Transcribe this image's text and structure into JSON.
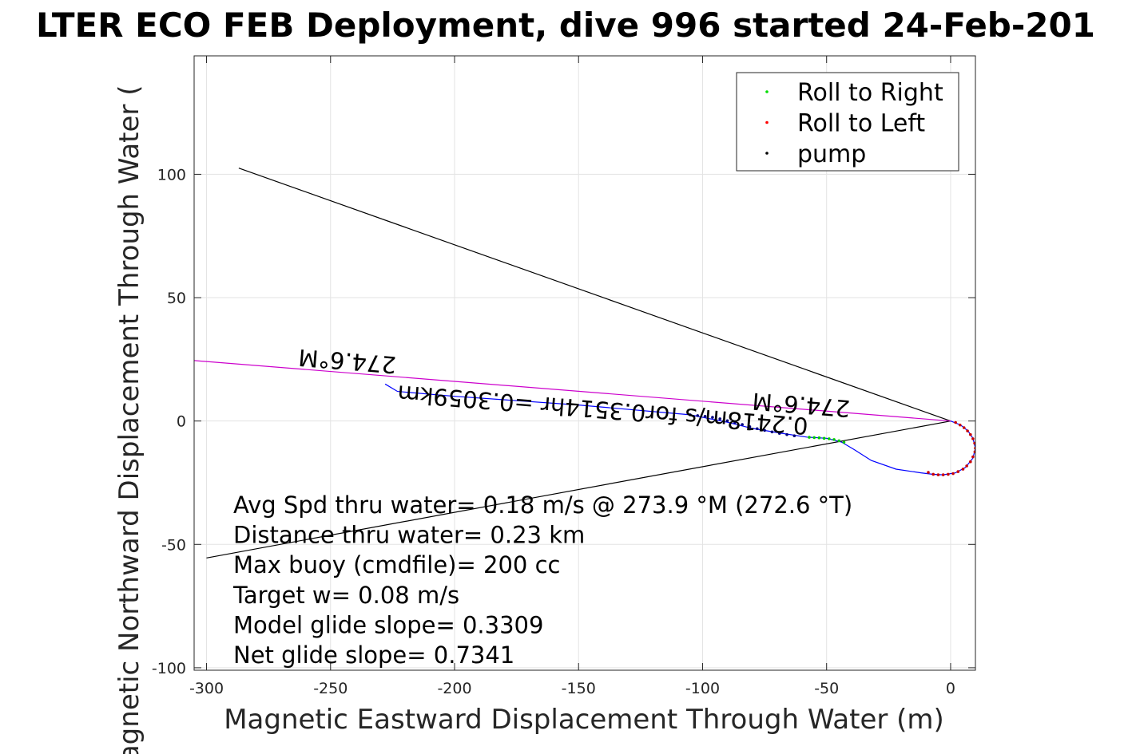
{
  "chart_data": {
    "type": "scatter",
    "title": "LTER ECO FEB Deployment, dive 996 started 24-Feb-201",
    "xlabel": "Magnetic Eastward Displacement Through Water (m)",
    "ylabel": "Magnetic Northward Displacement Through Water (",
    "xlim": [
      -305,
      10
    ],
    "ylim": [
      -101,
      148
    ],
    "xticks": [
      -300,
      -250,
      -200,
      -150,
      -100,
      -50,
      0
    ],
    "xtick_labels": [
      "-300",
      "-250",
      "-200",
      "-150",
      "-100",
      "-50",
      "0"
    ],
    "yticks": [
      -100,
      -50,
      0,
      50,
      100
    ],
    "ytick_labels": [
      "-100",
      "-50",
      "0",
      "50",
      "100"
    ],
    "grid": true,
    "legend_position": "top-right",
    "legend": [
      {
        "label": "Roll to Right",
        "color": "#00dd00"
      },
      {
        "label": "Roll to Left",
        "color": "#ff0000"
      },
      {
        "label": "pump",
        "color": "#000000"
      }
    ],
    "lines": [
      {
        "role": "reference-upper",
        "color": "#000000",
        "points": [
          [
            0,
            0
          ],
          [
            -287,
            102.5
          ]
        ]
      },
      {
        "role": "reference-lower",
        "color": "#000000",
        "points": [
          [
            0,
            0
          ],
          [
            -300,
            -55.5
          ]
        ]
      },
      {
        "role": "heading",
        "color": "#cc00cc",
        "points": [
          [
            0,
            0
          ],
          [
            -305,
            24.5
          ]
        ]
      }
    ],
    "track": {
      "color": "#0000ff",
      "points": [
        [
          -228,
          15
        ],
        [
          -223,
          12
        ],
        [
          -200,
          10
        ],
        [
          -150,
          6.5
        ],
        [
          -105,
          2.5
        ],
        [
          -90,
          -0.5
        ],
        [
          -80,
          -3
        ],
        [
          -68,
          -5
        ],
        [
          -58,
          -6.5
        ],
        [
          -50,
          -7
        ],
        [
          -44,
          -8.5
        ],
        [
          -39,
          -11.5
        ],
        [
          -32,
          -16
        ],
        [
          -22,
          -19.5
        ],
        [
          -12,
          -21
        ],
        [
          -7,
          -21.6
        ],
        [
          -3,
          -21.8
        ],
        [
          2,
          -21
        ],
        [
          6,
          -18.8
        ],
        [
          9,
          -15
        ],
        [
          10,
          -11
        ],
        [
          9,
          -7
        ],
        [
          7,
          -4
        ],
        [
          4,
          -1.6
        ],
        [
          0,
          0
        ]
      ]
    },
    "series": [
      {
        "name": "pump",
        "color": "#00007a",
        "points": [
          [
            -105,
            2.5
          ],
          [
            -102,
            2.2
          ],
          [
            -99,
            1.9
          ],
          [
            -96,
            1.5
          ],
          [
            -93,
            0.9
          ],
          [
            -90,
            0.1
          ],
          [
            -87,
            -0.6
          ],
          [
            -84,
            -1.4
          ],
          [
            -81,
            -2.3
          ],
          [
            -78,
            -3.1
          ],
          [
            -75,
            -3.8
          ],
          [
            -72,
            -4.4
          ],
          [
            -69,
            -5
          ],
          [
            -66,
            -5.5
          ],
          [
            -63,
            -6
          ]
        ]
      },
      {
        "name": "Roll to Right",
        "color": "#00cc00",
        "points": [
          [
            -57,
            -6.6
          ],
          [
            -55,
            -6.7
          ],
          [
            -53,
            -6.8
          ],
          [
            -51,
            -7
          ],
          [
            -49,
            -7.2
          ],
          [
            -47,
            -7.5
          ],
          [
            -45,
            -8
          ],
          [
            -43,
            -8.6
          ]
        ]
      },
      {
        "name": "Roll to Left",
        "color": "#cc0000",
        "points": [
          [
            -9,
            -20.8
          ],
          [
            -7,
            -21.6
          ],
          [
            -5,
            -21.8
          ],
          [
            -3,
            -21.8
          ],
          [
            -1,
            -21.6
          ],
          [
            1,
            -21.3
          ],
          [
            3,
            -20.5
          ],
          [
            5,
            -19.5
          ],
          [
            6.5,
            -18.2
          ],
          [
            8,
            -16.5
          ],
          [
            9,
            -14.5
          ],
          [
            9.8,
            -12.5
          ],
          [
            10,
            -11
          ],
          [
            9.7,
            -9
          ],
          [
            9,
            -7.2
          ],
          [
            8,
            -5.5
          ],
          [
            6.8,
            -4
          ],
          [
            5.4,
            -2.7
          ],
          [
            3.8,
            -1.6
          ],
          [
            2,
            -0.6
          ]
        ]
      }
    ],
    "rotated_labels": [
      {
        "text": "274.6°M",
        "x": -243,
        "y": 27.5
      },
      {
        "text": "274.6°M",
        "x": -60,
        "y": 9.8
      },
      {
        "text": "0.2418m/s for0.3514hr =0.3059km",
        "x": -140,
        "y": 7.8
      }
    ],
    "annotations": [
      "Avg Spd thru water=  0.18 m/s @ 273.9 °M (272.6 °T)",
      "Distance thru water=  0.23 km",
      "Max buoy (cmdfile)= 200 cc",
      "Target w= 0.08 m/s",
      "Model glide slope= 0.3309",
      "Net glide slope= 0.7341"
    ]
  }
}
